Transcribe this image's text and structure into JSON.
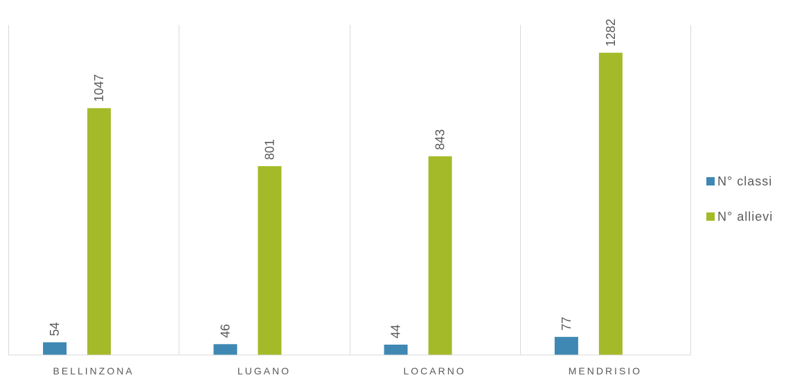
{
  "chart_data": {
    "type": "bar",
    "categories": [
      "BELLINZONA",
      "LUGANO",
      "LOCARNO",
      "MENDRISIO"
    ],
    "series": [
      {
        "name": "N° classi",
        "values": [
          54,
          46,
          44,
          77
        ],
        "color": "#3E88B3"
      },
      {
        "name": "N° allievi",
        "values": [
          1047,
          801,
          843,
          1282
        ],
        "color": "#A5BA28"
      }
    ],
    "ylim": [
      0,
      1400
    ],
    "grid": "vertical category separators",
    "legend_position": "right",
    "data_labels": "rotated"
  }
}
